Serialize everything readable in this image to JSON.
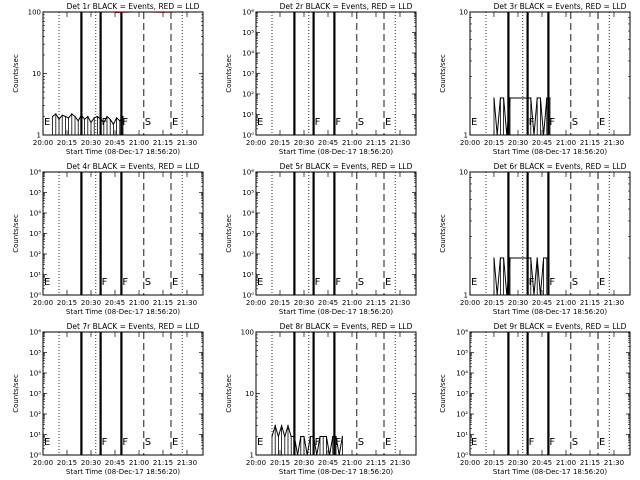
{
  "figure": {
    "time_axis": {
      "start": "20:00",
      "end": "21:40",
      "tick_labels": [
        "20:00",
        "20:15",
        "20:30",
        "20:45",
        "21:00",
        "21:15",
        "21:30"
      ],
      "xlabel": "Start Time (08-Dec-17 18:56:20)"
    },
    "ylabel": "Counts/sec",
    "vertical_lines": [
      {
        "time": "20:10",
        "style": "dotted",
        "label": ""
      },
      {
        "time": "20:24",
        "style": "solid",
        "label": ""
      },
      {
        "time": "20:36",
        "style": "solid",
        "label": "F"
      },
      {
        "time": "20:49",
        "style": "solid",
        "label": "F"
      },
      {
        "time": "21:03",
        "style": "dashed",
        "label": "S"
      },
      {
        "time": "21:20",
        "style": "dashed",
        "label": "E"
      },
      {
        "time": "20:33",
        "style": "dotted",
        "label": ""
      },
      {
        "time": "21:27",
        "style": "dotted",
        "label": ""
      }
    ],
    "colors": {
      "events": "#000000",
      "lld": "#ff0000"
    }
  },
  "chart_data": [
    {
      "type": "line",
      "title": "Det 1r BLACK = Events, RED = LLD",
      "yscale": "log",
      "ylim": [
        1,
        100
      ],
      "ytick_labels": [
        "1",
        "10",
        "100"
      ],
      "e_label": "E",
      "series": [
        {
          "name": "Events",
          "x": [
            "20:06",
            "20:08",
            "20:10",
            "20:12",
            "20:14",
            "20:16",
            "20:18",
            "20:20",
            "20:22",
            "20:24",
            "20:26",
            "20:28",
            "20:30",
            "20:32",
            "20:34",
            "20:36",
            "20:38",
            "20:40",
            "20:42",
            "20:44",
            "20:46",
            "20:48",
            "20:50"
          ],
          "values": [
            2.0,
            2.2,
            1.8,
            2.1,
            2.0,
            1.9,
            2.2,
            2.0,
            1.7,
            2.1,
            1.8,
            2.0,
            1.6,
            1.9,
            2.0,
            1.8,
            1.6,
            2.0,
            1.8,
            1.5,
            1.9,
            1.7,
            2.0
          ]
        },
        {
          "name": "LLD",
          "x": [
            "20:45",
            "20:55",
            "21:05",
            "21:15",
            "21:25",
            "21:35"
          ],
          "values": [
            98,
            100,
            100,
            99,
            100,
            100
          ]
        }
      ]
    },
    {
      "type": "line",
      "title": "Det 2r BLACK = Events, RED = LLD",
      "yscale": "log",
      "ylim": [
        1,
        1000000
      ],
      "ytick_labels": [
        "10⁰",
        "10¹",
        "10²",
        "10³",
        "10⁴",
        "10⁵",
        "10⁶"
      ],
      "e_label": "E",
      "series": []
    },
    {
      "type": "line",
      "title": "Det 3r BLACK = Events, RED = LLD",
      "yscale": "log",
      "ylim": [
        1,
        10
      ],
      "ytick_labels": [
        "1",
        "10"
      ],
      "e_label": "E",
      "series": [
        {
          "name": "Events",
          "x": [
            "20:15",
            "20:17",
            "20:19",
            "20:21",
            "20:23",
            "20:25",
            "20:38",
            "20:40",
            "20:42",
            "20:44",
            "20:46",
            "20:48",
            "20:50"
          ],
          "values": [
            2,
            1,
            2,
            2,
            1,
            2,
            2,
            1,
            2,
            2,
            1,
            2,
            2
          ]
        }
      ]
    },
    {
      "type": "line",
      "title": "Det 4r BLACK = Events, RED = LLD",
      "yscale": "log",
      "ylim": [
        1,
        1000000
      ],
      "ytick_labels": [
        "10⁰",
        "10¹",
        "10²",
        "10³",
        "10⁴",
        "10⁵",
        "10⁶"
      ],
      "e_label": "E",
      "series": []
    },
    {
      "type": "line",
      "title": "Det 5r BLACK = Events, RED = LLD",
      "yscale": "log",
      "ylim": [
        1,
        1000000
      ],
      "ytick_labels": [
        "10⁰",
        "10¹",
        "10²",
        "10³",
        "10⁴",
        "10⁵",
        "10⁶"
      ],
      "e_label": "E",
      "series": []
    },
    {
      "type": "line",
      "title": "Det 6r BLACK = Events, RED = LLD",
      "yscale": "log",
      "ylim": [
        1,
        10
      ],
      "ytick_labels": [
        "1",
        "10"
      ],
      "e_label": "E",
      "series": [
        {
          "name": "Events",
          "x": [
            "20:15",
            "20:17",
            "20:19",
            "20:21",
            "20:23",
            "20:25",
            "20:38",
            "20:40",
            "20:42",
            "20:44",
            "20:46",
            "20:48"
          ],
          "values": [
            2,
            1,
            2,
            2,
            1,
            2,
            2,
            1,
            2,
            1,
            2,
            2
          ]
        }
      ]
    },
    {
      "type": "line",
      "title": "Det 7r BLACK = Events, RED = LLD",
      "yscale": "log",
      "ylim": [
        1,
        1000000
      ],
      "ytick_labels": [
        "10⁰",
        "10¹",
        "10²",
        "10³",
        "10⁴",
        "10⁵",
        "10⁶"
      ],
      "e_label": "E",
      "series": []
    },
    {
      "type": "line",
      "title": "Det 8r BLACK = Events, RED = LLD",
      "yscale": "log",
      "ylim": [
        1,
        100
      ],
      "ytick_labels": [
        "1",
        "10",
        "100"
      ],
      "e_label": "E",
      "series": [
        {
          "name": "Events",
          "x": [
            "20:10",
            "20:12",
            "20:14",
            "20:16",
            "20:18",
            "20:20",
            "20:22",
            "20:24",
            "20:26",
            "20:28",
            "20:30",
            "20:32",
            "20:34",
            "20:36",
            "20:38",
            "20:40",
            "20:42",
            "20:44",
            "20:46",
            "20:48",
            "20:50",
            "20:52",
            "20:54"
          ],
          "values": [
            2,
            3,
            2,
            3,
            2,
            3,
            2,
            2,
            1,
            2,
            2,
            1,
            2,
            2,
            1,
            2,
            2,
            2,
            1,
            2,
            2,
            1,
            2
          ]
        }
      ]
    },
    {
      "type": "line",
      "title": "Det 9r BLACK = Events, RED = LLD",
      "yscale": "log",
      "ylim": [
        1,
        1000000
      ],
      "ytick_labels": [
        "10⁰",
        "10¹",
        "10²",
        "10³",
        "10⁴",
        "10⁵",
        "10⁶"
      ],
      "e_label": "E",
      "series": []
    }
  ]
}
